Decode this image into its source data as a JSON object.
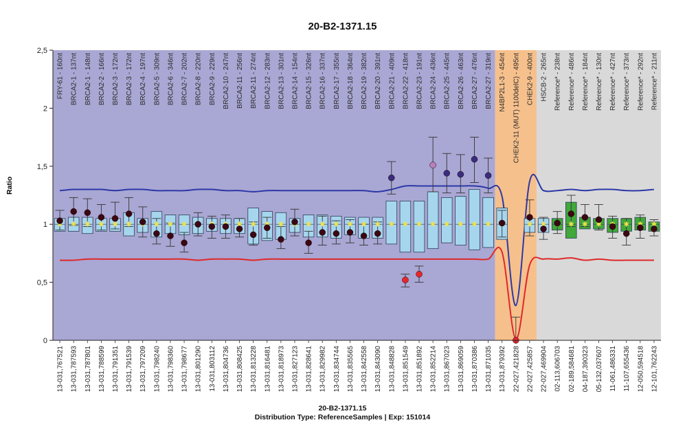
{
  "title": "20-B2-1371.15",
  "footer": {
    "line1": "20-B2-1371.15",
    "line2": "Distribution Type: ReferenceSamples | Exp: 151014"
  },
  "colors": {
    "region_brca": "#a9a7d3",
    "region_chek": "#f6c08c",
    "region_ref": "#d9d9d9",
    "box_blue": "#a6d6ee",
    "box_green": "#41a83b",
    "upper_line": "#2b38a8",
    "lower_line": "#e02828",
    "point": "#3b0713"
  },
  "chart_data": {
    "type": "box",
    "ylabel": "Ratio",
    "ylim": [
      0,
      2.5
    ],
    "yticks": [
      "0",
      "0,5",
      "1",
      "1,5",
      "2",
      "2,5"
    ],
    "regions": [
      {
        "name": "BRCA2 probes",
        "from": 0,
        "to": 32,
        "color": "#a9a7d3"
      },
      {
        "name": "CHEK2/HSCB probes",
        "from": 32,
        "to": 35,
        "color": "#f6c08c"
      },
      {
        "name": "Reference probes",
        "from": 35,
        "to": 44,
        "color": "#d9d9d9"
      }
    ],
    "probes": [
      {
        "label": "FRY-61 - 160nt",
        "pos": "13-031,767521",
        "value": 1.03,
        "err": [
          0.95,
          1.12
        ],
        "box": [
          0.94,
          1.05
        ],
        "type": "blue"
      },
      {
        "label": "BRCA2-1 - 137nt",
        "pos": "13-031,787593",
        "value": 1.11,
        "err": [
          0.99,
          1.23
        ],
        "box": [
          0.94,
          1.06
        ],
        "type": "blue"
      },
      {
        "label": "BRCA2-1 - 148nt",
        "pos": "13-031,787801",
        "value": 1.1,
        "err": [
          0.98,
          1.22
        ],
        "box": [
          0.92,
          1.06
        ],
        "type": "blue"
      },
      {
        "label": "BRCA2-2 - 166nt",
        "pos": "13-031,788599",
        "value": 1.06,
        "err": [
          0.95,
          1.17
        ],
        "box": [
          0.94,
          1.05
        ],
        "type": "blue"
      },
      {
        "label": "BRCA2-3 - 172nt",
        "pos": "13-031,791351",
        "value": 1.05,
        "err": [
          0.96,
          1.19
        ],
        "box": [
          0.94,
          1.05
        ],
        "type": "blue"
      },
      {
        "label": "BRCA2-3 - 172nt",
        "pos": "13-031,791539",
        "value": 1.09,
        "err": [
          0.98,
          1.23
        ],
        "box": [
          0.9,
          1.1
        ],
        "type": "blue"
      },
      {
        "label": "BRCA2-4 - 197nt",
        "pos": "13-031,797209",
        "value": 1.02,
        "err": [
          0.89,
          1.15
        ],
        "box": [
          0.93,
          1.05
        ],
        "type": "blue"
      },
      {
        "label": "BRCA2-5 - 309nt",
        "pos": "13-031,798240",
        "value": 0.92,
        "err": [
          0.83,
          1.05
        ],
        "box": [
          0.89,
          1.11
        ],
        "type": "blue"
      },
      {
        "label": "BRCA2-6 - 346nt",
        "pos": "13-031,798360",
        "value": 0.9,
        "err": [
          0.81,
          1.01
        ],
        "box": [
          0.92,
          1.08
        ],
        "type": "blue"
      },
      {
        "label": "BRCA2-7 - 202nt",
        "pos": "13-031,798677",
        "value": 0.84,
        "err": [
          0.76,
          0.93
        ],
        "box": [
          0.91,
          1.08
        ],
        "type": "blue"
      },
      {
        "label": "BRCA2-8 - 220nt",
        "pos": "13-031,801290",
        "value": 1.0,
        "err": [
          0.9,
          1.1
        ],
        "box": [
          0.92,
          1.06
        ],
        "type": "blue"
      },
      {
        "label": "BRCA2-9 - 229nt",
        "pos": "13-031,803112",
        "value": 0.98,
        "err": [
          0.88,
          1.07
        ],
        "box": [
          0.94,
          1.05
        ],
        "type": "blue"
      },
      {
        "label": "BRCA2-10 - 247nt",
        "pos": "13-031,804736",
        "value": 0.98,
        "err": [
          0.88,
          1.08
        ],
        "box": [
          0.92,
          1.05
        ],
        "type": "blue"
      },
      {
        "label": "BRCA2-11 - 256nt",
        "pos": "13-031,808425",
        "value": 0.96,
        "err": [
          0.89,
          1.05
        ],
        "box": [
          0.92,
          1.05
        ],
        "type": "blue"
      },
      {
        "label": "BRCA2-11 - 274nt",
        "pos": "13-031,813228",
        "value": 0.91,
        "err": [
          0.82,
          1.02
        ],
        "box": [
          0.83,
          1.14
        ],
        "type": "blue"
      },
      {
        "label": "BRCA2-12 - 283nt",
        "pos": "13-031,816481",
        "value": 0.97,
        "err": [
          0.88,
          1.06
        ],
        "box": [
          0.86,
          1.11
        ],
        "type": "blue"
      },
      {
        "label": "BRCA2-13 - 301nt",
        "pos": "13-031,818973",
        "value": 0.87,
        "err": [
          0.79,
          0.98
        ],
        "box": [
          0.87,
          1.1
        ],
        "type": "blue"
      },
      {
        "label": "BRCA2-14 - 154nt",
        "pos": "13-031,827123",
        "value": 1.02,
        "err": [
          0.9,
          1.13
        ],
        "box": [
          0.93,
          1.05
        ],
        "type": "blue"
      },
      {
        "label": "BRCA2-15 - 326nt",
        "pos": "13-031,828641",
        "value": 0.84,
        "err": [
          0.75,
          0.94
        ],
        "box": [
          0.89,
          1.08
        ],
        "type": "blue"
      },
      {
        "label": "BRCA2-16 - 337nt",
        "pos": "13-031,829982",
        "value": 0.93,
        "err": [
          0.82,
          1.07
        ],
        "box": [
          0.89,
          1.08
        ],
        "type": "blue"
      },
      {
        "label": "BRCA2-17 - 355nt",
        "pos": "13-031,834744",
        "value": 0.92,
        "err": [
          0.83,
          1.03
        ],
        "box": [
          0.88,
          1.07
        ],
        "type": "blue"
      },
      {
        "label": "BRCA2-18 - 364nt",
        "pos": "13-031,835565",
        "value": 0.93,
        "err": [
          0.84,
          1.04
        ],
        "box": [
          0.91,
          1.06
        ],
        "type": "blue"
      },
      {
        "label": "BRCA2-19 - 382nt",
        "pos": "13-031,842558",
        "value": 0.9,
        "err": [
          0.82,
          1.0
        ],
        "box": [
          0.88,
          1.06
        ],
        "type": "blue"
      },
      {
        "label": "BRCA2-20 - 391nt",
        "pos": "13-031,843090",
        "value": 0.92,
        "err": [
          0.83,
          1.02
        ],
        "box": [
          0.88,
          1.06
        ],
        "type": "blue"
      },
      {
        "label": "BRCA2-21 - 409nt",
        "pos": "13-031,848828",
        "value": 1.4,
        "err": [
          1.26,
          1.54
        ],
        "box": [
          0.83,
          1.2
        ],
        "type": "blue",
        "color": "#3a2c7e"
      },
      {
        "label": "BRCA2-22 - 418nt",
        "pos": "13-031,851549",
        "value": 0.52,
        "err": [
          0.46,
          0.57
        ],
        "box": [
          0.76,
          1.2
        ],
        "type": "blue",
        "color": "#e8262b"
      },
      {
        "label": "BRCA2-23 - 191nt",
        "pos": "13-031,851892",
        "value": 0.57,
        "err": [
          0.5,
          0.64
        ],
        "box": [
          0.76,
          1.2
        ],
        "type": "blue",
        "color": "#e8262b"
      },
      {
        "label": "BRCA2-24 - 436nt",
        "pos": "13-031,852214",
        "value": 1.51,
        "err": [
          1.28,
          1.75
        ],
        "box": [
          0.79,
          1.28
        ],
        "type": "blue",
        "color": "#b87fbc"
      },
      {
        "label": "BRCA2-25 - 445nt",
        "pos": "13-031,867023",
        "value": 1.44,
        "err": [
          1.27,
          1.61
        ],
        "box": [
          0.84,
          1.23
        ],
        "type": "blue",
        "color": "#3a2c7e"
      },
      {
        "label": "BRCA2-26 - 463nt",
        "pos": "13-031,869059",
        "value": 1.43,
        "err": [
          1.27,
          1.6
        ],
        "box": [
          0.82,
          1.24
        ],
        "type": "blue",
        "color": "#3a2c7e"
      },
      {
        "label": "BRCA2-27 - 476nt",
        "pos": "13-031,870386",
        "value": 1.56,
        "err": [
          1.36,
          1.75
        ],
        "box": [
          0.78,
          1.3
        ],
        "type": "blue",
        "color": "#3a2c7e"
      },
      {
        "label": "BRCA2-27 - 319nt",
        "pos": "13-031,871035",
        "value": 1.42,
        "err": [
          1.27,
          1.57
        ],
        "box": [
          0.8,
          1.23
        ],
        "type": "blue",
        "color": "#3a2c7e"
      },
      {
        "label": "N4BP2L1-3 - 454nt",
        "pos": "13-031,879392",
        "value": 1.01,
        "err": [
          0.89,
          1.12
        ],
        "box": [
          0.87,
          1.14
        ],
        "type": "blue"
      },
      {
        "label": "CHEK2-11 (MUT) 1100delC) - 495nt",
        "pos": "22-027,421828",
        "value": 0.0,
        "err": [
          0.0,
          0.2
        ],
        "box": null,
        "type": "blue",
        "color": "#e8262b"
      },
      {
        "label": "CHEK2-9 - 400nt",
        "pos": "22-027,425857",
        "value": 1.06,
        "err": [
          0.9,
          1.21
        ],
        "box": [
          0.93,
          1.05
        ],
        "type": "blue"
      },
      {
        "label": "HSCB-2 - 265nt",
        "pos": "22-027,469904",
        "value": 0.96,
        "err": [
          0.87,
          1.06
        ],
        "box": [
          0.93,
          1.05
        ],
        "type": "blue"
      },
      {
        "label": "Reference* - 238nt",
        "pos": "02-113,606703",
        "value": 1.01,
        "err": [
          0.92,
          1.11
        ],
        "box": [
          0.95,
          1.05
        ],
        "type": "green"
      },
      {
        "label": "Reference* - 486nt",
        "pos": "02-189,584681",
        "value": 1.09,
        "err": [
          0.98,
          1.25
        ],
        "box": [
          0.88,
          1.19
        ],
        "type": "green"
      },
      {
        "label": "Reference* - 184nt",
        "pos": "04-187,390323",
        "value": 1.06,
        "err": [
          0.98,
          1.17
        ],
        "box": [
          0.96,
          1.06
        ],
        "type": "green"
      },
      {
        "label": "Reference* - 130nt",
        "pos": "05-132,037607",
        "value": 1.04,
        "err": [
          0.95,
          1.17
        ],
        "box": [
          0.96,
          1.05
        ],
        "type": "green"
      },
      {
        "label": "Reference* - 427nt",
        "pos": "11-061,486331",
        "value": 0.98,
        "err": [
          0.88,
          1.07
        ],
        "box": [
          0.93,
          1.05
        ],
        "type": "green"
      },
      {
        "label": "Reference* - 373nt",
        "pos": "11-107,655436",
        "value": 0.92,
        "err": [
          0.82,
          1.05
        ],
        "box": [
          0.94,
          1.05
        ],
        "type": "green"
      },
      {
        "label": "Reference* - 292nt",
        "pos": "12-050,594518",
        "value": 0.97,
        "err": [
          0.88,
          1.08
        ],
        "box": [
          0.95,
          1.06
        ],
        "type": "green"
      },
      {
        "label": "Reference* - 211nt",
        "pos": "12-101,762243",
        "value": 0.96,
        "err": [
          0.9,
          1.04
        ],
        "box": [
          0.94,
          1.02
        ],
        "type": "green"
      }
    ],
    "upper_limit": [
      1.29,
      1.3,
      1.3,
      1.3,
      1.29,
      1.3,
      1.3,
      1.29,
      1.29,
      1.29,
      1.3,
      1.3,
      1.29,
      1.29,
      1.28,
      1.29,
      1.29,
      1.29,
      1.29,
      1.29,
      1.29,
      1.29,
      1.29,
      1.28,
      1.3,
      1.33,
      1.33,
      1.33,
      1.33,
      1.33,
      1.33,
      1.31,
      1.24,
      0.3,
      1.37,
      1.29,
      1.29,
      1.3,
      1.29,
      1.3,
      1.3,
      1.29,
      1.29,
      1.3
    ],
    "lower_limit": [
      0.69,
      0.69,
      0.7,
      0.7,
      0.7,
      0.7,
      0.7,
      0.7,
      0.7,
      0.7,
      0.69,
      0.7,
      0.7,
      0.7,
      0.69,
      0.7,
      0.7,
      0.7,
      0.7,
      0.7,
      0.7,
      0.7,
      0.7,
      0.7,
      0.7,
      0.7,
      0.7,
      0.7,
      0.7,
      0.7,
      0.7,
      0.7,
      0.76,
      0.01,
      0.65,
      0.7,
      0.7,
      0.71,
      0.69,
      0.7,
      0.69,
      0.69,
      0.69,
      0.69
    ],
    "grid": false,
    "legend": "none"
  }
}
